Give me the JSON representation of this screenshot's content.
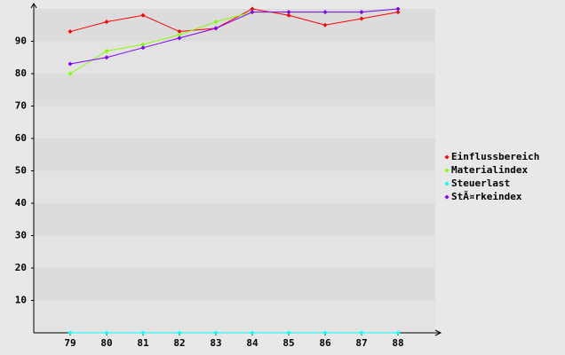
{
  "chart_data": {
    "type": "line",
    "categories": [
      "79",
      "80",
      "81",
      "82",
      "83",
      "84",
      "85",
      "86",
      "87",
      "88"
    ],
    "series": [
      {
        "name": "Einflussbereich",
        "color": "#ff0000",
        "values": [
          93,
          96,
          98,
          93,
          94,
          100,
          98,
          95,
          97,
          99
        ]
      },
      {
        "name": "Materialindex",
        "color": "#80ff00",
        "values": [
          80,
          87,
          89,
          92,
          96,
          99,
          99,
          99,
          99,
          100
        ]
      },
      {
        "name": "Steuerlast",
        "color": "#00ffff",
        "values": [
          0,
          0,
          0,
          0,
          0,
          0,
          0,
          0,
          0,
          0
        ]
      },
      {
        "name": "StÃ¤rkeindex",
        "color": "#8000ff",
        "values": [
          83,
          85,
          88,
          91,
          94,
          99,
          99,
          99,
          99,
          100
        ]
      }
    ],
    "ylim": [
      0,
      100
    ],
    "yticks": [
      10,
      20,
      30,
      40,
      50,
      60,
      70,
      80,
      90
    ],
    "legend": "right"
  }
}
